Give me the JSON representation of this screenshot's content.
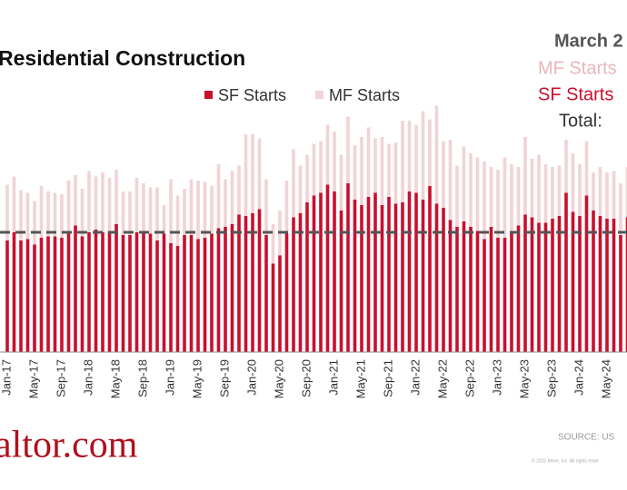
{
  "chart_data": {
    "type": "stacked-bar",
    "title": "Residential Construction",
    "annotations": {
      "date": "March 2",
      "mf": "MF Starts",
      "sf": "SF Starts",
      "total": "Total:"
    },
    "source": "SOURCE: US",
    "copyright": "© 2025 Move, Inc. All rights reser",
    "logo": "altor.com",
    "categories": [
      "Jan-17",
      null,
      null,
      null,
      "May-17",
      null,
      null,
      null,
      "Sep-17",
      null,
      null,
      null,
      "Jan-18",
      null,
      null,
      null,
      "May-18",
      null,
      null,
      null,
      "Sep-18",
      null,
      null,
      null,
      "Jan-19",
      null,
      null,
      null,
      "May-19",
      null,
      null,
      null,
      "Sep-19",
      null,
      null,
      null,
      "Jan-20",
      null,
      null,
      null,
      "May-20",
      null,
      null,
      null,
      "Sep-20",
      null,
      null,
      null,
      "Jan-21",
      null,
      null,
      null,
      "May-21",
      null,
      null,
      null,
      "Sep-21",
      null,
      null,
      null,
      "Jan-22",
      null,
      null,
      null,
      "May-22",
      null,
      null,
      null,
      "Sep-22",
      null,
      null,
      null,
      "Jan-23",
      null,
      null,
      null,
      "May-23",
      null,
      null,
      null,
      "Sep-23",
      null,
      null,
      null,
      "Jan-24",
      null,
      null,
      null,
      "May-24",
      null,
      null,
      null
    ],
    "series": [
      {
        "name": "SF Starts",
        "color": "#c8102e",
        "values": [
          820,
          880,
          820,
          830,
          790,
          840,
          850,
          850,
          840,
          880,
          930,
          850,
          880,
          900,
          880,
          890,
          940,
          860,
          860,
          880,
          890,
          870,
          820,
          870,
          800,
          780,
          860,
          860,
          830,
          840,
          870,
          910,
          920,
          940,
          1010,
          1000,
          1020,
          1050,
          860,
          650,
          710,
          870,
          990,
          1020,
          1100,
          1150,
          1170,
          1230,
          1180,
          1040,
          1240,
          1120,
          1080,
          1140,
          1170,
          1080,
          1140,
          1090,
          1100,
          1180,
          1170,
          1120,
          1220,
          1090,
          1060,
          970,
          920,
          960,
          920,
          890,
          830,
          920,
          840,
          840,
          880,
          930,
          1010,
          990,
          950,
          950,
          980,
          1000,
          1170,
          1030,
          1000,
          1150,
          1040,
          1000,
          980,
          980,
          860,
          990
        ]
      },
      {
        "name": "MF Starts",
        "color": "#f0d4d6",
        "values": [
          410,
          410,
          370,
          340,
          320,
          380,
          330,
          320,
          320,
          380,
          370,
          350,
          450,
          390,
          440,
          390,
          400,
          320,
          320,
          400,
          350,
          340,
          390,
          210,
          470,
          370,
          340,
          410,
          430,
          410,
          350,
          470,
          350,
          390,
          360,
          600,
          580,
          520,
          410,
          290,
          330,
          390,
          500,
          350,
          350,
          380,
          380,
          440,
          440,
          410,
          490,
          400,
          500,
          510,
          400,
          500,
          390,
          450,
          600,
          520,
          500,
          650,
          490,
          720,
          490,
          590,
          450,
          550,
          540,
          540,
          570,
          440,
          500,
          590,
          500,
          430,
          570,
          430,
          500,
          430,
          380,
          370,
          390,
          430,
          380,
          400,
          280,
          360,
          340,
          350,
          380,
          370
        ]
      }
    ],
    "reference_value": 880,
    "ylim": [
      0,
      2000
    ]
  }
}
